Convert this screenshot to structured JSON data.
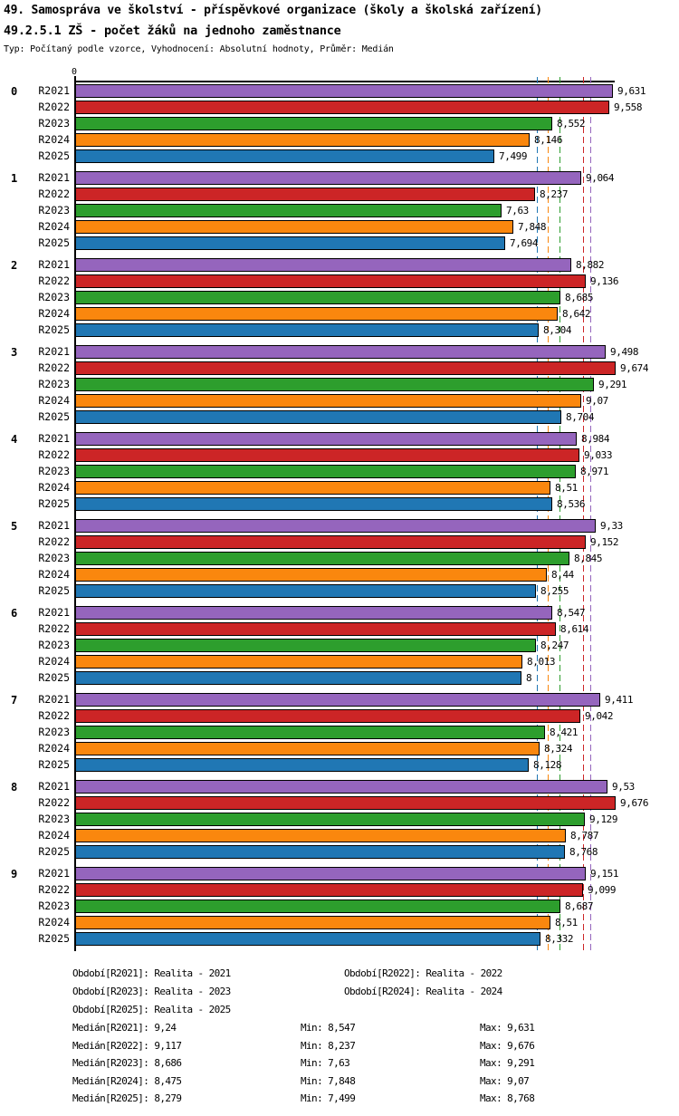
{
  "header": {
    "title": "49. Samospráva ve školství - příspěvkové organizace (školy a školská zařízení)",
    "subtitle": "49.2.5.1 ZŠ - počet žáků na jednoho zaměstnance",
    "meta": "Typ: Počítaný podle vzorce, Vyhodnocení: Absolutní hodnoty, Průměr: Medián"
  },
  "chart_data": {
    "type": "bar",
    "orientation": "horizontal",
    "x_axis": {
      "origin_label": "0",
      "max_value": 9.676,
      "grid": false
    },
    "series": [
      "R2021",
      "R2022",
      "R2023",
      "R2024",
      "R2025"
    ],
    "series_colors": {
      "R2021": "#9565bd",
      "R2022": "#cc2526",
      "R2023": "#2d9e2d",
      "R2024": "#fa870e",
      "R2025": "#2077b4"
    },
    "categories": [
      "0",
      "1",
      "2",
      "3",
      "4",
      "5",
      "6",
      "7",
      "8",
      "9"
    ],
    "groups": [
      {
        "category": "0",
        "values": [
          9.631,
          9.558,
          8.552,
          8.146,
          7.499
        ],
        "labels": [
          "9,631",
          "9,558",
          "8,552",
          "8,146",
          "7,499"
        ]
      },
      {
        "category": "1",
        "values": [
          9.064,
          8.237,
          7.63,
          7.848,
          7.694
        ],
        "labels": [
          "9,064",
          "8,237",
          "7,63",
          "7,848",
          "7,694"
        ]
      },
      {
        "category": "2",
        "values": [
          8.882,
          9.136,
          8.685,
          8.642,
          8.304
        ],
        "labels": [
          "8,882",
          "9,136",
          "8,685",
          "8,642",
          "8,304"
        ]
      },
      {
        "category": "3",
        "values": [
          9.498,
          9.674,
          9.291,
          9.07,
          8.704
        ],
        "labels": [
          "9,498",
          "9,674",
          "9,291",
          "9,07",
          "8,704"
        ]
      },
      {
        "category": "4",
        "values": [
          8.984,
          9.033,
          8.971,
          8.51,
          8.536
        ],
        "labels": [
          "8,984",
          "9,033",
          "8,971",
          "8,51",
          "8,536"
        ]
      },
      {
        "category": "5",
        "values": [
          9.33,
          9.152,
          8.845,
          8.44,
          8.255
        ],
        "labels": [
          "9,33",
          "9,152",
          "8,845",
          "8,44",
          "8,255"
        ]
      },
      {
        "category": "6",
        "values": [
          8.547,
          8.614,
          8.247,
          8.013,
          8
        ],
        "labels": [
          "8,547",
          "8,614",
          "8,247",
          "8,013",
          "8"
        ]
      },
      {
        "category": "7",
        "values": [
          9.411,
          9.042,
          8.421,
          8.324,
          8.128
        ],
        "labels": [
          "9,411",
          "9,042",
          "8,421",
          "8,324",
          "8,128"
        ]
      },
      {
        "category": "8",
        "values": [
          9.53,
          9.676,
          9.129,
          8.787,
          8.768
        ],
        "labels": [
          "9,53",
          "9,676",
          "9,129",
          "8,787",
          "8,768"
        ]
      },
      {
        "category": "9",
        "values": [
          9.151,
          9.099,
          8.687,
          8.51,
          8.332
        ],
        "labels": [
          "9,151",
          "9,099",
          "8,687",
          "8,51",
          "8,332"
        ]
      }
    ],
    "medians": [
      {
        "series": "R2021",
        "value": 9.24,
        "label": "9,24"
      },
      {
        "series": "R2022",
        "value": 9.117,
        "label": "9,117"
      },
      {
        "series": "R2023",
        "value": 8.686,
        "label": "8,686"
      },
      {
        "series": "R2024",
        "value": 8.475,
        "label": "8,475"
      },
      {
        "series": "R2025",
        "value": 8.279,
        "label": "8,279"
      }
    ]
  },
  "legend": {
    "periods": [
      "Období[R2021]: Realita - 2021",
      "Období[R2022]: Realita - 2022",
      "Období[R2023]: Realita - 2023",
      "Období[R2024]: Realita - 2024",
      "Období[R2025]: Realita - 2025"
    ],
    "stats": [
      {
        "median": "Medián[R2021]: 9,24",
        "min": "Min: 8,547",
        "max": "Max: 9,631"
      },
      {
        "median": "Medián[R2022]: 9,117",
        "min": "Min: 8,237",
        "max": "Max: 9,676"
      },
      {
        "median": "Medián[R2023]: 8,686",
        "min": "Min: 7,63",
        "max": "Max: 9,291"
      },
      {
        "median": "Medián[R2024]: 8,475",
        "min": "Min: 7,848",
        "max": "Max: 9,07"
      },
      {
        "median": "Medián[R2025]: 8,279",
        "min": "Min: 7,499",
        "max": "Max: 8,768"
      }
    ]
  }
}
